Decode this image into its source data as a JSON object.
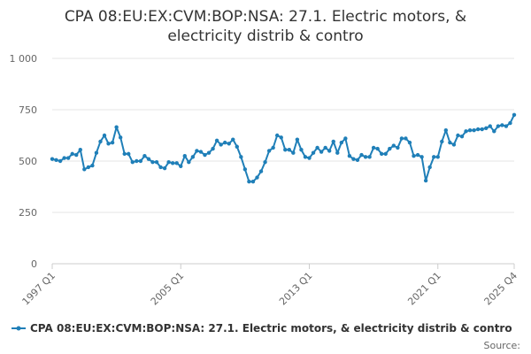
{
  "chart_data": {
    "type": "line",
    "title_lines": [
      "CPA 08:EU:EX:CVM:BOP:NSA: 27.1. Electric motors, &",
      "electricity distrib & contro"
    ],
    "xlabel": "",
    "ylabel": "",
    "ylim": [
      0,
      1000
    ],
    "y_ticks": [
      0,
      250,
      500,
      750,
      1000
    ],
    "y_tick_labels": [
      "0",
      "250",
      "500",
      "750",
      "1 000"
    ],
    "x_tick_labels": [
      {
        "label": "1997 Q1",
        "index": 0
      },
      {
        "label": "2005 Q1",
        "index": 32
      },
      {
        "label": "2013 Q1",
        "index": 64
      },
      {
        "label": "2021 Q1",
        "index": 96
      },
      {
        "label": "2025 Q4",
        "index": 115
      }
    ],
    "grid": true,
    "legend_position": "bottom",
    "series": [
      {
        "name": "CPA 08:EU:EX:CVM:BOP:NSA: 27.1. Electric motors, & electricity distrib & contro",
        "color": "#1f7fb8",
        "values": [
          510,
          505,
          500,
          515,
          515,
          535,
          530,
          555,
          460,
          470,
          478,
          540,
          595,
          625,
          585,
          590,
          665,
          615,
          535,
          535,
          495,
          500,
          500,
          525,
          510,
          495,
          495,
          470,
          465,
          495,
          490,
          490,
          475,
          525,
          495,
          520,
          550,
          545,
          530,
          540,
          560,
          600,
          580,
          590,
          585,
          605,
          570,
          520,
          460,
          400,
          400,
          420,
          450,
          495,
          550,
          565,
          625,
          615,
          555,
          555,
          540,
          605,
          555,
          520,
          515,
          540,
          565,
          545,
          565,
          550,
          595,
          540,
          590,
          610,
          525,
          510,
          505,
          530,
          520,
          520,
          565,
          560,
          535,
          535,
          560,
          575,
          565,
          610,
          610,
          590,
          525,
          530,
          520,
          405,
          470,
          520,
          520,
          595,
          650,
          590,
          580,
          625,
          620,
          645,
          650,
          650,
          655,
          655,
          660,
          670,
          645,
          670,
          675,
          670,
          685,
          725
        ]
      }
    ]
  },
  "legend": {
    "label": "CPA 08:EU:EX:CVM:BOP:NSA: 27.1. Electric motors, & electricity distrib & contro",
    "icon": "line-with-dot-icon"
  },
  "source_label": "Source:"
}
